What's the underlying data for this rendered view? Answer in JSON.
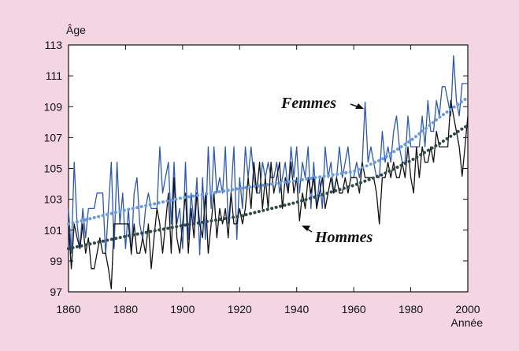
{
  "chart_data": {
    "type": "line",
    "title": "",
    "xlabel": "Année",
    "ylabel": "Âge",
    "xlim": [
      1860,
      2000
    ],
    "ylim": [
      97,
      113
    ],
    "x_ticks": [
      1860,
      1880,
      1900,
      1920,
      1940,
      1960,
      1980,
      2000
    ],
    "y_ticks": [
      97,
      99,
      101,
      103,
      105,
      107,
      109,
      111,
      113
    ],
    "grid": false,
    "legend": "none",
    "colors": {
      "background": "#f3d6e2",
      "plot_area": "#ffffff",
      "femmes": "#2a56c6",
      "hommes": "#111111",
      "femmes_trend": "#6b9be0",
      "hommes_trend": "#2e4a4a"
    },
    "annotations": [
      {
        "text": "Femmes",
        "points_to": [
          1964,
          109.1
        ]
      },
      {
        "text": "Hommes",
        "points_to": [
          1942,
          101.6
        ]
      }
    ],
    "series": [
      {
        "name": "Femmes",
        "style": "solid",
        "x": [
          1860,
          1861,
          1862,
          1863,
          1864,
          1865,
          1866,
          1867,
          1868,
          1869,
          1870,
          1871,
          1872,
          1873,
          1874,
          1875,
          1876,
          1877,
          1878,
          1879,
          1880,
          1881,
          1882,
          1883,
          1884,
          1885,
          1886,
          1887,
          1888,
          1889,
          1890,
          1891,
          1892,
          1893,
          1894,
          1895,
          1896,
          1897,
          1898,
          1899,
          1900,
          1901,
          1902,
          1903,
          1904,
          1905,
          1906,
          1907,
          1908,
          1909,
          1910,
          1911,
          1912,
          1913,
          1914,
          1915,
          1916,
          1917,
          1918,
          1919,
          1920,
          1921,
          1922,
          1923,
          1924,
          1925,
          1926,
          1927,
          1928,
          1929,
          1930,
          1931,
          1932,
          1933,
          1934,
          1935,
          1936,
          1937,
          1938,
          1939,
          1940,
          1941,
          1942,
          1943,
          1944,
          1945,
          1946,
          1947,
          1948,
          1949,
          1950,
          1951,
          1952,
          1953,
          1954,
          1955,
          1956,
          1957,
          1958,
          1959,
          1960,
          1961,
          1962,
          1963,
          1964,
          1965,
          1966,
          1967,
          1968,
          1969,
          1970,
          1971,
          1972,
          1973,
          1974,
          1975,
          1976,
          1977,
          1978,
          1979,
          1980,
          1981,
          1982,
          1983,
          1984,
          1985,
          1986,
          1987,
          1988,
          1989,
          1990,
          1991,
          1992,
          1993,
          1994,
          1995,
          1996,
          1997,
          1998,
          1999,
          2000
        ],
        "values": [
          102.4,
          99.5,
          105.4,
          101.4,
          99.8,
          102.4,
          100.5,
          102.4,
          102.4,
          102.4,
          103.4,
          103.4,
          103.4,
          99.4,
          102.4,
          105.4,
          99.8,
          105.4,
          101.4,
          103.4,
          99.8,
          102.4,
          99.4,
          103.4,
          104.4,
          101.4,
          100.4,
          102.4,
          103.4,
          102.4,
          102.4,
          102.4,
          106.4,
          103.4,
          104.4,
          105.4,
          101.4,
          105.4,
          101.4,
          102.4,
          99.8,
          105.4,
          100.4,
          103.4,
          101.4,
          104.4,
          99.4,
          104.4,
          100.4,
          106.4,
          102.4,
          106.4,
          103.4,
          104.4,
          103.4,
          106.4,
          101.4,
          103.4,
          106.4,
          100.4,
          104.4,
          102.4,
          106.4,
          104.4,
          106.4,
          104.4,
          103.4,
          103.4,
          105.4,
          104.4,
          105.4,
          104.4,
          104.4,
          105.4,
          103.4,
          104.4,
          105.4,
          103.4,
          106.4,
          104.4,
          106.4,
          103.4,
          105.4,
          104.4,
          106.4,
          102.4,
          105.4,
          102.4,
          104.4,
          102.4,
          106.4,
          104.4,
          105.4,
          103.4,
          104.4,
          106.4,
          104.4,
          105.4,
          106.4,
          104.4,
          104.4,
          105.4,
          104.4,
          105.4,
          109.3,
          105.4,
          106.4,
          105.4,
          104.4,
          104.4,
          107.4,
          105.4,
          106.4,
          105.4,
          107.4,
          108.4,
          106.4,
          105.4,
          105.4,
          108.4,
          106.4,
          106.4,
          106.4,
          106.4,
          108.4,
          106.4,
          109.4,
          107.4,
          107.4,
          109.4,
          108.4,
          110.3,
          110.3,
          109.4,
          108.4,
          112.3,
          109.4,
          108.4,
          110.5,
          110.5,
          110.5
        ]
      },
      {
        "name": "Hommes",
        "style": "solid",
        "x": [
          1860,
          1861,
          1862,
          1863,
          1864,
          1865,
          1866,
          1867,
          1868,
          1869,
          1870,
          1871,
          1872,
          1873,
          1874,
          1875,
          1876,
          1877,
          1878,
          1879,
          1880,
          1881,
          1882,
          1883,
          1884,
          1885,
          1886,
          1887,
          1888,
          1889,
          1890,
          1891,
          1892,
          1893,
          1894,
          1895,
          1896,
          1897,
          1898,
          1899,
          1900,
          1901,
          1902,
          1903,
          1904,
          1905,
          1906,
          1907,
          1908,
          1909,
          1910,
          1911,
          1912,
          1913,
          1914,
          1915,
          1916,
          1917,
          1918,
          1919,
          1920,
          1921,
          1922,
          1923,
          1924,
          1925,
          1926,
          1927,
          1928,
          1929,
          1930,
          1931,
          1932,
          1933,
          1934,
          1935,
          1936,
          1937,
          1938,
          1939,
          1940,
          1941,
          1942,
          1943,
          1944,
          1945,
          1946,
          1947,
          1948,
          1949,
          1950,
          1951,
          1952,
          1953,
          1954,
          1955,
          1956,
          1957,
          1958,
          1959,
          1960,
          1961,
          1962,
          1963,
          1964,
          1965,
          1966,
          1967,
          1968,
          1969,
          1970,
          1971,
          1972,
          1973,
          1974,
          1975,
          1976,
          1977,
          1978,
          1979,
          1980,
          1981,
          1982,
          1983,
          1984,
          1985,
          1986,
          1987,
          1988,
          1989,
          1990,
          1991,
          1992,
          1993,
          1994,
          1995,
          1996,
          1997,
          1998,
          1999,
          2000
        ],
        "values": [
          101.4,
          98.5,
          101.4,
          100.5,
          99.8,
          101.4,
          99.5,
          100.5,
          98.5,
          98.5,
          99.5,
          100.5,
          99.5,
          99.5,
          98.5,
          97.2,
          101.4,
          101.4,
          101.4,
          101.4,
          101.4,
          101.4,
          99.5,
          101.4,
          99.5,
          99.5,
          100.5,
          99.5,
          101.4,
          98.5,
          100.5,
          102.4,
          101.4,
          99.5,
          101.4,
          103.4,
          99.5,
          104.4,
          100.5,
          99.5,
          101.4,
          103.4,
          99.5,
          102.4,
          100.5,
          103.4,
          101.4,
          100.5,
          103.4,
          99.5,
          101.4,
          103.4,
          100.5,
          102.4,
          101.4,
          102.4,
          100.5,
          103.4,
          101.4,
          101.4,
          102.4,
          101.4,
          102.4,
          104.4,
          102.4,
          105.4,
          103.4,
          105.4,
          102.4,
          104.4,
          102.4,
          105.4,
          103.4,
          104.4,
          105.4,
          102.4,
          104.4,
          103.4,
          105.4,
          103.4,
          104.4,
          101.6,
          103.4,
          102.4,
          104.4,
          103.4,
          104.4,
          102.4,
          103.4,
          104.4,
          102.4,
          103.4,
          104.4,
          103.4,
          104.4,
          103.4,
          103.4,
          104.4,
          103.4,
          104.4,
          104.4,
          104.4,
          103.4,
          105.4,
          104.4,
          104.4,
          104.4,
          104.4,
          103.4,
          101.4,
          104.4,
          104.4,
          105.4,
          104.4,
          105.4,
          104.4,
          104.4,
          105.4,
          104.4,
          106.4,
          104.4,
          103.4,
          106.4,
          104.4,
          106.4,
          105.4,
          105.4,
          106.4,
          105.4,
          107.4,
          106.4,
          106.4,
          106.4,
          106.4,
          109.4,
          108.4,
          107.4,
          106.4,
          104.5,
          106.4,
          108.4
        ]
      },
      {
        "name": "Femmes",
        "style": "dotted-trend",
        "x": [
          1860,
          1880,
          1900,
          1920,
          1940,
          1960,
          1970,
          1980,
          1990,
          2000
        ],
        "values": [
          101.4,
          102.3,
          103.1,
          103.7,
          104.2,
          104.8,
          105.6,
          106.8,
          108.3,
          109.6
        ]
      },
      {
        "name": "Hommes",
        "style": "dotted-trend",
        "x": [
          1860,
          1880,
          1900,
          1920,
          1940,
          1960,
          1970,
          1980,
          1990,
          2000
        ],
        "values": [
          99.8,
          100.6,
          101.3,
          101.9,
          102.8,
          103.9,
          104.6,
          105.5,
          106.6,
          107.8
        ]
      }
    ]
  }
}
